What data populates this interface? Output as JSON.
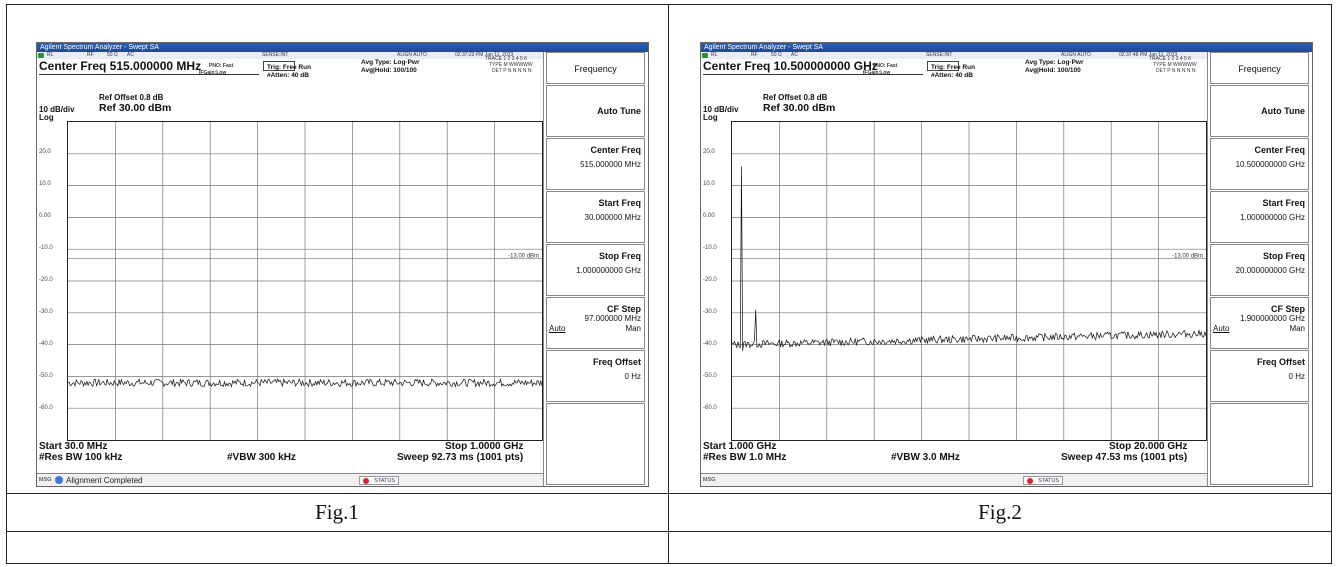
{
  "captions": {
    "fig1": "Fig.1",
    "fig2": "Fig.2"
  },
  "fig1": {
    "window_title": "Agilent Spectrum Analyzer - Swept SA",
    "status": {
      "rl": "RL",
      "rf": "RF",
      "ohm": "50 Ω",
      "ac": "AC",
      "sense": "SENSE:INT",
      "align": "ALIGN AUTO",
      "time": "02:37:23 PM Jan 11, 2023"
    },
    "center_freq": "Center Freq 515.000000 MHz",
    "pno": "PNO: Fast",
    "ifgain": "IFGain:Low",
    "trig": "Trig: Free Run",
    "atten": "#Atten: 40 dB",
    "avg_type": "Avg Type: Log-Pwr",
    "avg_hold": "Avg|Hold: 100/100",
    "trace_line": "TRACE 1 2 3 4 5 6",
    "type_line": "TYPE M WWWWW",
    "det_line": "DET P N N N N N",
    "ref_offset": "Ref Offset 0.8 dB",
    "ref_level": "Ref 30.00 dBm",
    "scale": "10 dB/div",
    "log": "Log",
    "y_labels": [
      "20.0",
      "10.0",
      "0.00",
      "-10.0",
      "-20.0",
      "-30.0",
      "-40.0",
      "-50.0",
      "-60.0"
    ],
    "limit_label": "-13.00 dBm",
    "start": "Start 30.0 MHz",
    "stop": "Stop 1.0000 GHz",
    "rbw": "#Res BW 100 kHz",
    "vbw": "#VBW 300 kHz",
    "sweep": "Sweep  92.73 ms (1001 pts)",
    "msg": "MSG",
    "msg_text": "Alignment Completed",
    "status_btn": "STATUS",
    "panel_title": "Frequency",
    "softkeys": [
      {
        "title": "Auto Tune",
        "value": ""
      },
      {
        "title": "Center Freq",
        "value": "515.000000 MHz"
      },
      {
        "title": "Start Freq",
        "value": "30.000000 MHz"
      },
      {
        "title": "Stop Freq",
        "value": "1.000000000 GHz"
      },
      {
        "title": "CF Step",
        "value": "97.000000 MHz",
        "auto": "Auto",
        "man": "Man"
      },
      {
        "title": "Freq Offset",
        "value": "0 Hz"
      }
    ],
    "trace": {
      "x_start_mhz": 30,
      "x_stop_mhz": 1000,
      "noise_floor_dbm": -52,
      "ref_dbm": 30,
      "db_per_div": 10
    }
  },
  "fig2": {
    "window_title": "Agilent Spectrum Analyzer - Swept SA",
    "status": {
      "rl": "RL",
      "rf": "RF",
      "ohm": "50 Ω",
      "ac": "AC",
      "sense": "SENSE:INT",
      "align": "ALIGN AUTO",
      "time": "02:37:48 PM Jan 11, 2023"
    },
    "center_freq": "Center Freq 10.500000000 GHz",
    "pno": "PNO: Fast",
    "ifgain": "IFGain:Low",
    "trig": "Trig: Free Run",
    "atten": "#Atten: 40 dB",
    "avg_type": "Avg Type: Log-Pwr",
    "avg_hold": "Avg|Hold: 100/100",
    "trace_line": "TRACE 1 2 3 4 5 6",
    "type_line": "TYPE M WWWWW",
    "det_line": "DET P N N N N N",
    "ref_offset": "Ref Offset 0.8 dB",
    "ref_level": "Ref 30.00 dBm",
    "scale": "10 dB/div",
    "log": "Log",
    "y_labels": [
      "20.0",
      "10.0",
      "0.00",
      "-10.0",
      "-20.0",
      "-30.0",
      "-40.0",
      "-50.0",
      "-60.0"
    ],
    "limit_label": "-13.00 dBm",
    "start": "Start 1.000 GHz",
    "stop": "Stop 20.000 GHz",
    "rbw": "#Res BW 1.0 MHz",
    "vbw": "#VBW 3.0 MHz",
    "sweep": "Sweep  47.53 ms (1001 pts)",
    "msg": "MSG",
    "msg_text": "",
    "status_btn": "STATUS",
    "panel_title": "Frequency",
    "softkeys": [
      {
        "title": "Auto Tune",
        "value": ""
      },
      {
        "title": "Center Freq",
        "value": "10.500000000 GHz"
      },
      {
        "title": "Start Freq",
        "value": "1.000000000 GHz"
      },
      {
        "title": "Stop Freq",
        "value": "20.000000000 GHz"
      },
      {
        "title": "CF Step",
        "value": "1.900000000 GHz",
        "auto": "Auto",
        "man": "Man"
      },
      {
        "title": "Freq Offset",
        "value": "0 Hz"
      }
    ],
    "trace": {
      "x_start_mhz": 1000,
      "x_stop_mhz": 20000,
      "noise_floor_dbm": -40,
      "ref_dbm": 30,
      "db_per_div": 10
    }
  }
}
